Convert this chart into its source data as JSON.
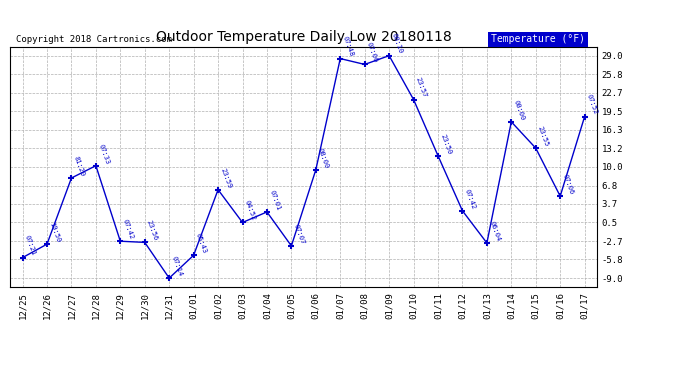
{
  "title": "Outdoor Temperature Daily Low 20180118",
  "copyright": "Copyright 2018 Cartronics.com",
  "legend_label": "Temperature (°F)",
  "x_labels": [
    "12/25",
    "12/26",
    "12/27",
    "12/28",
    "12/29",
    "12/30",
    "12/31",
    "01/01",
    "01/02",
    "01/03",
    "01/04",
    "01/05",
    "01/06",
    "01/07",
    "01/08",
    "01/09",
    "01/10",
    "01/11",
    "01/12",
    "01/13",
    "01/14",
    "01/15",
    "01/16",
    "01/17"
  ],
  "y_values": [
    -5.5,
    -3.2,
    8.1,
    10.2,
    -2.7,
    -2.9,
    -9.0,
    -5.1,
    6.1,
    0.5,
    2.3,
    -3.5,
    9.5,
    28.5,
    27.5,
    29.0,
    21.5,
    11.9,
    2.5,
    -3.0,
    17.7,
    13.2,
    5.0,
    18.6
  ],
  "time_labels": [
    "07:21",
    "19:50",
    "81:20",
    "07:33",
    "07:42",
    "23:56",
    "07:14",
    "05:43",
    "23:59",
    "04:52",
    "07:01",
    "07:07",
    "08:00",
    "07:48",
    "07:06",
    "00:10",
    "23:57",
    "23:50",
    "07:42",
    "06:04",
    "00:00",
    "23:55",
    "07:06",
    "07:52"
  ],
  "y_ticks": [
    -9.0,
    -5.8,
    -2.7,
    0.5,
    3.7,
    6.8,
    10.0,
    13.2,
    16.3,
    19.5,
    22.7,
    25.8,
    29.0
  ],
  "ylim": [
    -10.5,
    30.5
  ],
  "line_color": "#0000cc",
  "marker_color": "#0000cc",
  "label_color": "#0000cc",
  "bg_color": "#ffffff",
  "grid_color": "#b0b0b0",
  "title_color": "#000000",
  "legend_bg": "#0000cc",
  "legend_text_color": "#ffffff",
  "copyright_color": "#000000",
  "border_color": "#000000"
}
